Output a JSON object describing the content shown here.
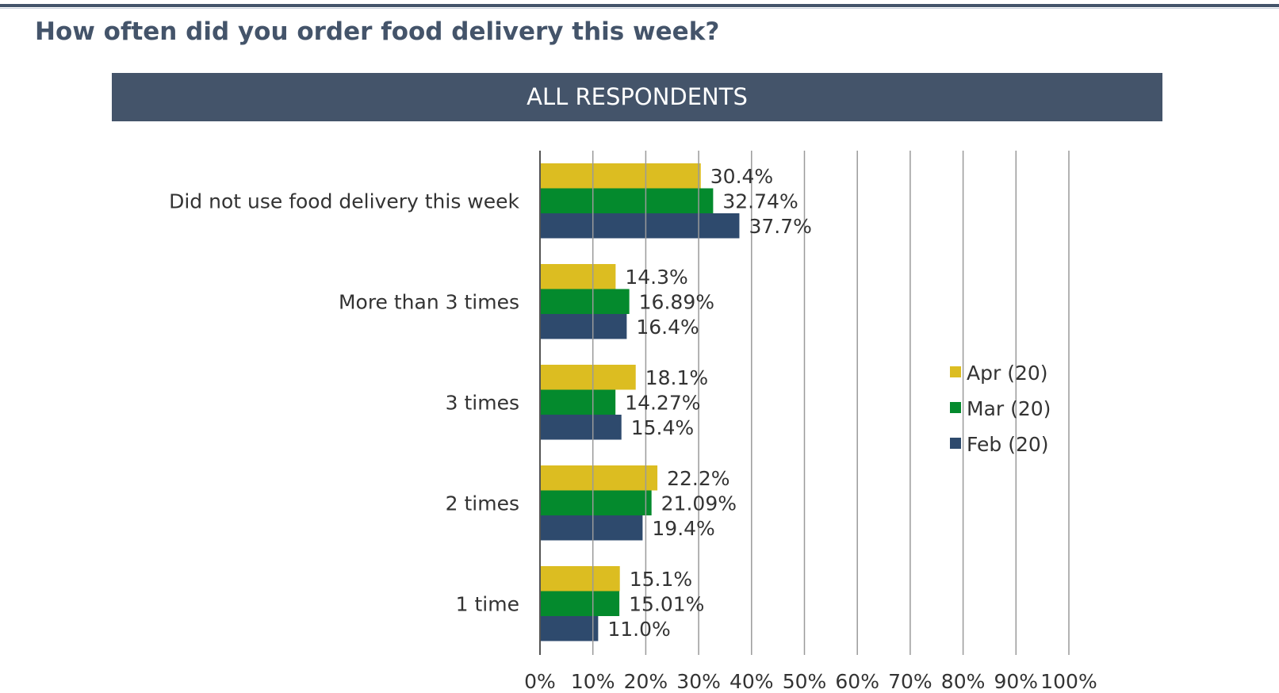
{
  "title": "How often did you order food delivery this week?",
  "banner": "ALL RESPONDENTS",
  "chart_data": {
    "type": "bar",
    "orientation": "horizontal",
    "categories": [
      "Did not use food delivery this week",
      "More than 3 times",
      "3 times",
      "2 times",
      "1 time"
    ],
    "series": [
      {
        "name": "Apr (20)",
        "color": "#dcbd21",
        "values": [
          30.4,
          14.3,
          18.1,
          22.2,
          15.1
        ],
        "labels": [
          "30.4%",
          "14.3%",
          "18.1%",
          "22.2%",
          "15.1%"
        ]
      },
      {
        "name": "Mar (20)",
        "color": "#048a2d",
        "values": [
          32.74,
          16.89,
          14.27,
          21.09,
          15.01
        ],
        "labels": [
          "32.74%",
          "16.89%",
          "14.27%",
          "21.09%",
          "15.01%"
        ]
      },
      {
        "name": "Feb (20)",
        "color": "#2e4a6d",
        "values": [
          37.7,
          16.4,
          15.4,
          19.4,
          11.0
        ],
        "labels": [
          "37.7%",
          "16.4%",
          "15.4%",
          "19.4%",
          "11.0%"
        ]
      }
    ],
    "xlim": [
      0,
      100
    ],
    "xticks": [
      "0%",
      "10%",
      "20%",
      "30%",
      "40%",
      "50%",
      "60%",
      "70%",
      "80%",
      "90%",
      "100%"
    ],
    "grid": true,
    "legend_position": "right"
  }
}
